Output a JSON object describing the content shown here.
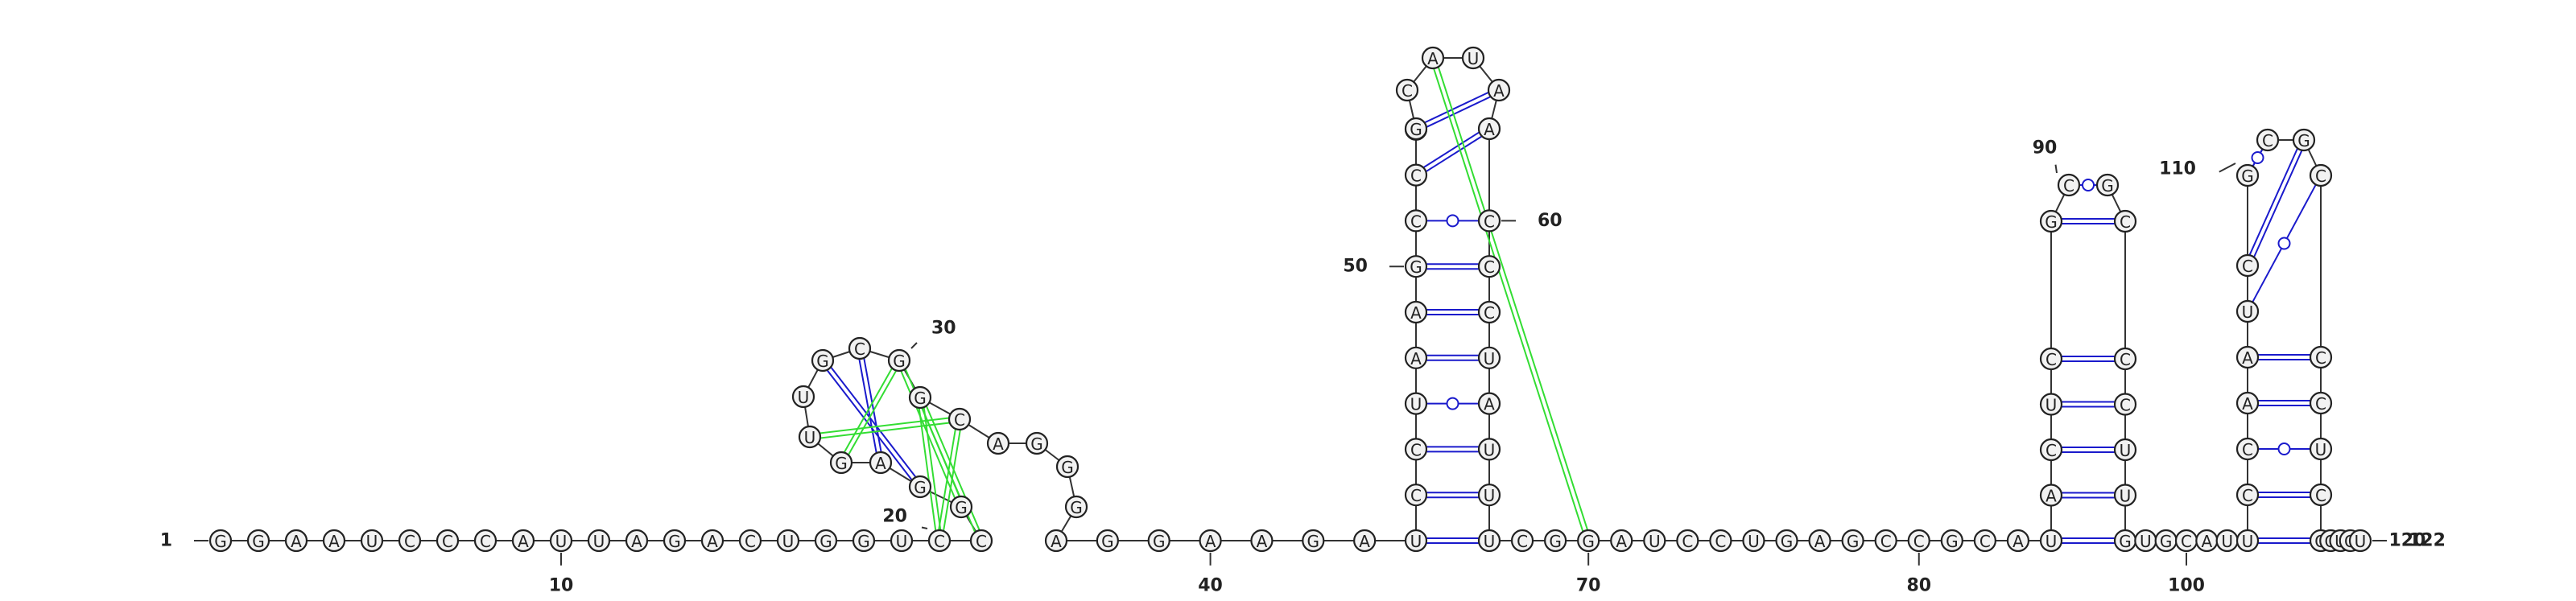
{
  "sequence": "GGAAUCCCAUUAGACUGGUCCGGAGUUGCGGCAGGGAGGAAGAUCCUAAGCCCGCAUAACCCUAUUUCGGAUCCUGAGCCGCAUACUCGCGCCCUUGUGCAUUCCAAUCGCGCCCUCGGUGUC",
  "numbers": [
    {
      "label": "1",
      "nt": 1
    },
    {
      "label": "10",
      "nt": 10
    },
    {
      "label": "20",
      "nt": 20
    },
    {
      "label": "30",
      "nt": 30
    },
    {
      "label": "40",
      "nt": 40
    },
    {
      "label": "50",
      "nt": 50
    },
    {
      "label": "60",
      "nt": 60
    },
    {
      "label": "70",
      "nt": 70
    },
    {
      "label": "80",
      "nt": 80
    },
    {
      "label": "90",
      "nt": 90
    },
    {
      "label": "100",
      "nt": 100
    },
    {
      "label": "110",
      "nt": 110
    },
    {
      "label": "120",
      "nt": 120
    },
    {
      "label": "122",
      "nt": 122
    }
  ],
  "base_pairs": [
    [
      44,
      67,
      "canonical"
    ],
    [
      45,
      66,
      "canonical"
    ],
    [
      46,
      65,
      "canonical"
    ],
    [
      47,
      64,
      "wobble"
    ],
    [
      48,
      63,
      "canonical"
    ],
    [
      49,
      62,
      "canonical"
    ],
    [
      50,
      61,
      "canonical"
    ],
    [
      51,
      60,
      "wobble"
    ],
    [
      52,
      59,
      "canonical"
    ],
    [
      53,
      58,
      "canonical"
    ],
    [
      84,
      97,
      "canonical"
    ],
    [
      85,
      96,
      "canonical"
    ],
    [
      86,
      95,
      "canonical"
    ],
    [
      87,
      94,
      "canonical"
    ],
    [
      88,
      93,
      "canonical"
    ],
    [
      89,
      92,
      "canonical"
    ],
    [
      90,
      91,
      "wobble"
    ],
    [
      103,
      118,
      "canonical"
    ],
    [
      104,
      117,
      "canonical"
    ],
    [
      105,
      116,
      "wobble"
    ],
    [
      106,
      115,
      "canonical"
    ],
    [
      107,
      114,
      "canonical"
    ],
    [
      108,
      113,
      "wobble"
    ],
    [
      109,
      112,
      "canonical"
    ],
    [
      110,
      111,
      "wobble"
    ],
    [
      23,
      28,
      "canonical"
    ],
    [
      24,
      29,
      "canonical"
    ]
  ],
  "tertiary_pairs": [
    [
      20,
      32
    ],
    [
      20,
      31
    ],
    [
      21,
      31
    ],
    [
      22,
      30
    ],
    [
      25,
      30
    ],
    [
      26,
      32
    ],
    [
      56,
      70
    ]
  ],
  "colors": {
    "canonical": "#1a1acc",
    "tertiary": "#33dd33",
    "circle_fill": "#f2f2f2"
  }
}
